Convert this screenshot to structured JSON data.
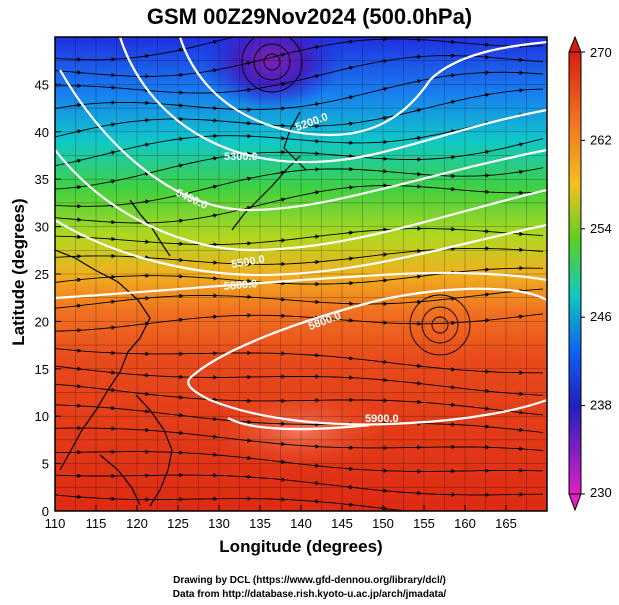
{
  "title": "GSM 00Z29Nov2024 (500.0hPa)",
  "x_axis": {
    "label": "Longitude (degrees)",
    "range": [
      110,
      170
    ],
    "ticks": [
      "110",
      "115",
      "120",
      "125",
      "130",
      "135",
      "140",
      "145",
      "150",
      "155",
      "160",
      "165"
    ]
  },
  "y_axis": {
    "label": "Latitude  (degrees)",
    "range": [
      0,
      50
    ],
    "ticks": [
      "0",
      "5",
      "10",
      "15",
      "20",
      "25",
      "30",
      "35",
      "40",
      "45"
    ]
  },
  "colorbar": {
    "range": [
      230,
      270
    ],
    "labels": [
      "270",
      "262",
      "254",
      "246",
      "238",
      "230"
    ],
    "colors": [
      "#d81e14",
      "#f07020",
      "#f5c020",
      "#60d020",
      "#10c8c0",
      "#1060f0",
      "#2020c0",
      "#8020c0",
      "#e020c0"
    ]
  },
  "contour_labels": [
    {
      "text": "5200.0"
    },
    {
      "text": "5300.0"
    },
    {
      "text": "5400.0"
    },
    {
      "text": "5500.0"
    },
    {
      "text": "5600.0"
    },
    {
      "text": "5800.0"
    },
    {
      "text": "5900.0"
    }
  ],
  "credits": {
    "line1": "Drawing by DCL (https://www.gfd-dennou.org/library/dcl/)",
    "line2": "Data from http://database.rish.kyoto-u.ac.jp/arch/jmadata/"
  }
}
